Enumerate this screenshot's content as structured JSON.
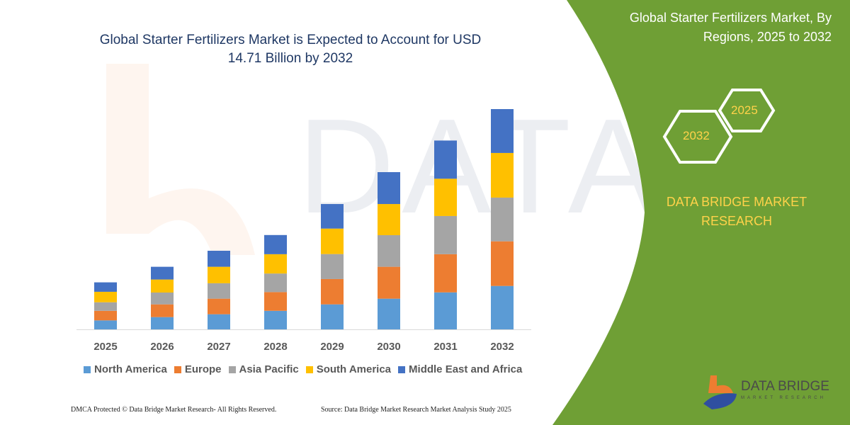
{
  "title": "Global Starter Fertilizers Market is Expected to Account for USD 14.71 Billion by 2032",
  "panel": {
    "title": "Global Starter Fertilizers Market, By Regions, 2025 to 2032",
    "hex_left": "2032",
    "hex_right": "2025",
    "brand": "DATA BRIDGE MARKET RESEARCH",
    "logo_text": "DATA BRIDGE",
    "logo_sub": "MARKET RESEARCH",
    "bg_color": "#6f9f35"
  },
  "footer": {
    "left": "DMCA Protected © Data Bridge Market Research- All Rights Reserved.",
    "right": "Source: Data Bridge Market Research Market Analysis Study 2025"
  },
  "chart_data": {
    "type": "bar",
    "stacked": true,
    "title": "Global Starter Fertilizers Market is Expected to Account for USD 14.71 Billion by 2032",
    "xlabel": "",
    "ylabel": "",
    "grid": false,
    "legend_position": "bottom",
    "categories": [
      "2025",
      "2026",
      "2027",
      "2028",
      "2029",
      "2030",
      "2031",
      "2032"
    ],
    "series": [
      {
        "name": "North America",
        "color": "#5b9bd5",
        "values": [
          0.6,
          0.82,
          1.01,
          1.24,
          1.67,
          2.05,
          2.47,
          2.9
        ]
      },
      {
        "name": "Europe",
        "color": "#ed7d31",
        "values": [
          0.64,
          0.85,
          1.04,
          1.25,
          1.69,
          2.13,
          2.55,
          2.98
        ]
      },
      {
        "name": "Asia Pacific",
        "color": "#a5a5a5",
        "values": [
          0.57,
          0.79,
          1.03,
          1.24,
          1.67,
          2.11,
          2.55,
          2.92
        ]
      },
      {
        "name": "South America",
        "color": "#ffc000",
        "values": [
          0.7,
          0.87,
          1.1,
          1.29,
          1.7,
          2.08,
          2.49,
          2.98
        ]
      },
      {
        "name": "Middle East and Africa",
        "color": "#4472c4",
        "values": [
          0.63,
          0.85,
          1.07,
          1.28,
          1.64,
          2.13,
          2.55,
          2.93
        ]
      }
    ]
  }
}
